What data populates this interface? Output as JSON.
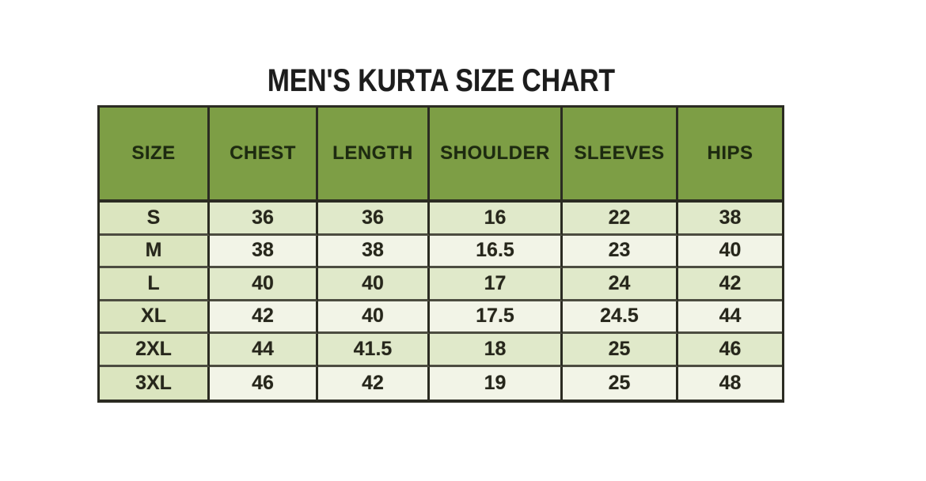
{
  "title": "MEN'S KURTA SIZE CHART",
  "chart_data": {
    "type": "table",
    "title": "MEN'S KURTA SIZE CHART",
    "columns": [
      "SIZE",
      "CHEST",
      "LENGTH",
      "SHOULDER",
      "SLEEVES",
      "HIPS"
    ],
    "rows": [
      [
        "S",
        "36",
        "36",
        "16",
        "22",
        "38"
      ],
      [
        "M",
        "38",
        "38",
        "16.5",
        "23",
        "40"
      ],
      [
        "L",
        "40",
        "40",
        "17",
        "24",
        "42"
      ],
      [
        "XL",
        "42",
        "40",
        "17.5",
        "24.5",
        "44"
      ],
      [
        "2XL",
        "44",
        "41.5",
        "18",
        "25",
        "46"
      ],
      [
        "3XL",
        "46",
        "42",
        "19",
        "25",
        "48"
      ]
    ],
    "legend": "none",
    "grid": "on"
  },
  "colors": {
    "page_bg": "#ffffff",
    "title_color": "#1c1c1c",
    "header_bg": "#7d9e45",
    "header_text": "#1d2a10",
    "size_col_bg": "#dbe5bf",
    "row_green_bg": "#e0e9ca",
    "row_pale_bg": "#f2f4e7",
    "cell_text": "#26261b",
    "border_dark": "#2b2b22",
    "border_row": "#4c4c40"
  }
}
